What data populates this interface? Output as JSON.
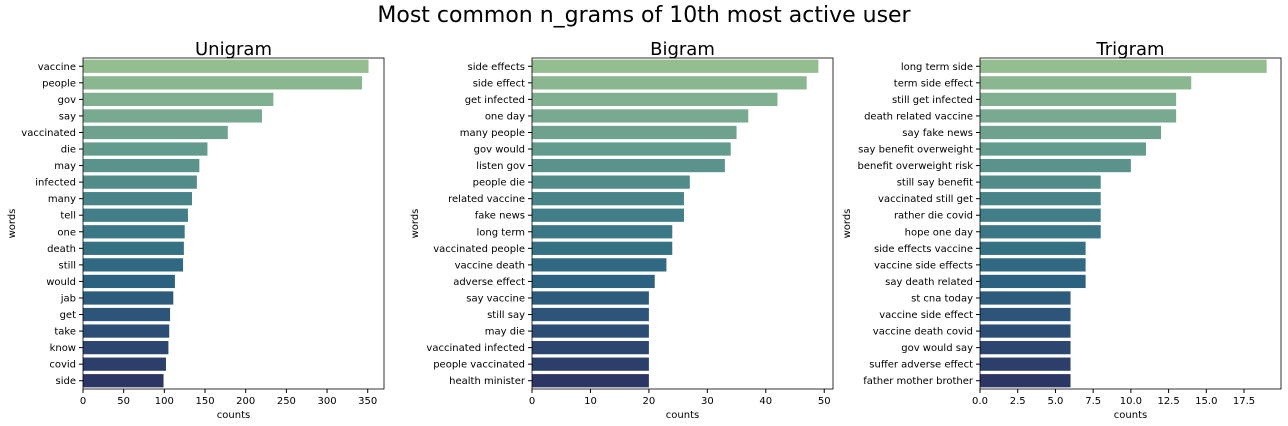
{
  "figure_title": "Most common n_grams of 10th most active user",
  "chart_data": [
    {
      "type": "bar",
      "orientation": "horizontal",
      "title": "Unigram",
      "xlabel": "counts",
      "ylabel": "words",
      "xlim": [
        0,
        370
      ],
      "xticks": [
        0,
        50,
        100,
        150,
        200,
        250,
        300,
        350
      ],
      "grid": false,
      "palette": "crest",
      "categories": [
        "vaccine",
        "people",
        "gov",
        "say",
        "vaccinated",
        "die",
        "may",
        "infected",
        "many",
        "tell",
        "one",
        "death",
        "still",
        "would",
        "jab",
        "get",
        "take",
        "know",
        "covid",
        "side"
      ],
      "values": [
        351,
        343,
        234,
        220,
        178,
        153,
        143,
        140,
        134,
        129,
        125,
        124,
        123,
        113,
        111,
        107,
        106,
        105,
        102,
        99
      ]
    },
    {
      "type": "bar",
      "orientation": "horizontal",
      "title": "Bigram",
      "xlabel": "counts",
      "ylabel": "words",
      "xlim": [
        0,
        51.5
      ],
      "xticks": [
        0,
        10,
        20,
        30,
        40,
        50
      ],
      "grid": false,
      "palette": "crest",
      "categories": [
        "side effects",
        "side effect",
        "get infected",
        "one day",
        "many people",
        "gov would",
        "listen gov",
        "people die",
        "related vaccine",
        "fake news",
        "long term",
        "vaccinated people",
        "vaccine death",
        "adverse effect",
        "say vaccine",
        "still say",
        "may die",
        "vaccinated infected",
        "people vaccinated",
        "health minister"
      ],
      "values": [
        49,
        47,
        42,
        37,
        35,
        34,
        33,
        27,
        26,
        26,
        24,
        24,
        23,
        21,
        20,
        20,
        20,
        20,
        20,
        20
      ]
    },
    {
      "type": "bar",
      "orientation": "horizontal",
      "title": "Trigram",
      "xlabel": "counts",
      "ylabel": "words",
      "xlim": [
        0,
        19.95
      ],
      "xticks": [
        0.0,
        2.5,
        5.0,
        7.5,
        10.0,
        12.5,
        15.0,
        17.5
      ],
      "grid": false,
      "palette": "crest",
      "categories": [
        "long term side",
        "term side effect",
        "still get infected",
        "death related vaccine",
        "say fake news",
        "say benefit overweight",
        "benefit overweight risk",
        "still say benefit",
        "vaccinated still get",
        "rather die covid",
        "hope one day",
        "side effects vaccine",
        "vaccine side effects",
        "say death related",
        "st cna today",
        "vaccine side effect",
        "vaccine death covid",
        "gov would say",
        "suffer adverse effect",
        "father mother brother"
      ],
      "values": [
        19,
        14,
        13,
        13,
        12,
        11,
        10,
        8,
        8,
        8,
        8,
        7,
        7,
        7,
        6,
        6,
        6,
        6,
        6,
        6
      ]
    }
  ]
}
